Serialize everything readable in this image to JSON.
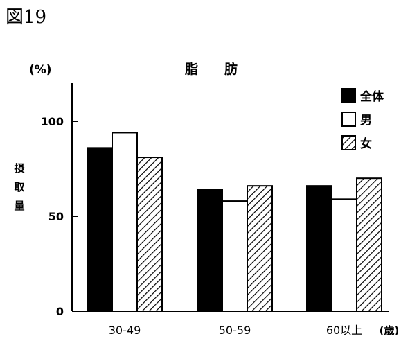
{
  "figure_label": "図19",
  "chart_data": {
    "type": "bar",
    "title": "脂　　肪",
    "unit_label": "(%)",
    "ylabel": "摂取量",
    "xlabel": "",
    "categories": [
      "30-49",
      "50-59",
      "60以上"
    ],
    "category_suffix": "(歳)",
    "ylim": [
      0,
      120
    ],
    "yticks": [
      0,
      50,
      100
    ],
    "grid": false,
    "legend_position": "top-right",
    "series": [
      {
        "name": "全体",
        "values": [
          86,
          64,
          66
        ],
        "style": "solid",
        "color": "#000000"
      },
      {
        "name": "男",
        "values": [
          94,
          58,
          59
        ],
        "style": "outline",
        "color": "#ffffff"
      },
      {
        "name": "女",
        "values": [
          81,
          66,
          70
        ],
        "style": "hatched",
        "color": "#000000"
      }
    ]
  }
}
